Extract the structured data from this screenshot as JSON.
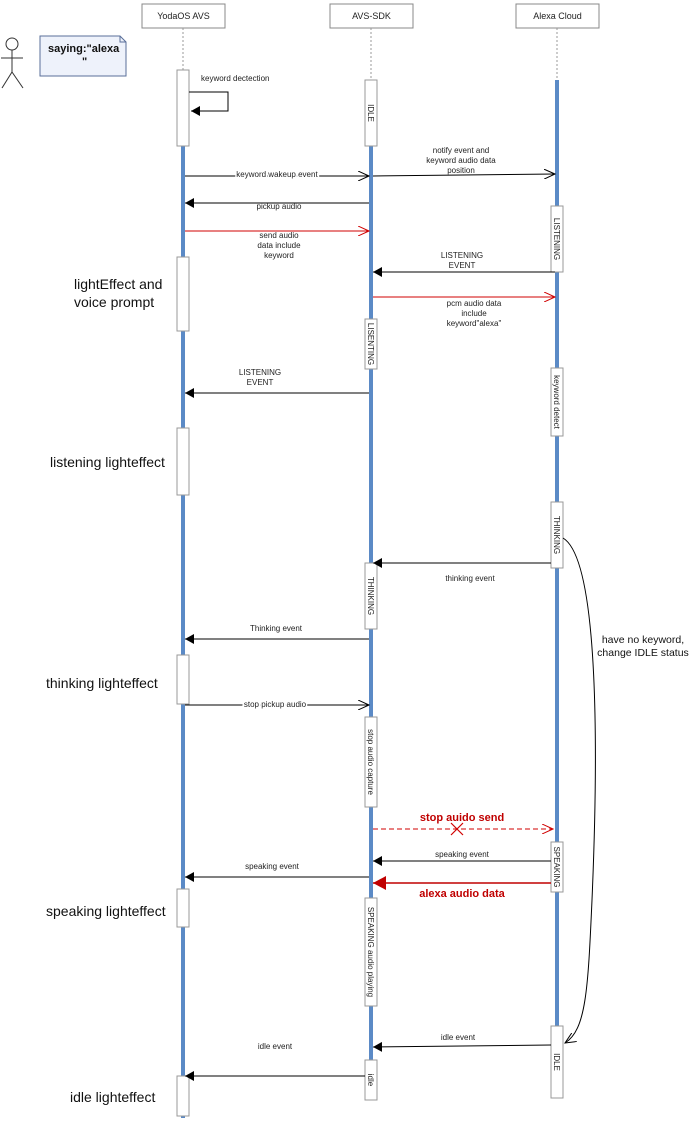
{
  "participants": {
    "yodaos": "YodaOS AVS",
    "avs": "AVS-SDK",
    "cloud": "Alexa Cloud"
  },
  "note": {
    "line1": "saying:\"alexa",
    "line2": "\""
  },
  "messages": {
    "keyword_detection": "keyword dectection",
    "keyword_wakeup": "keyword wakeup event",
    "notify_1": "notify event and",
    "notify_2": "keyword audio data",
    "notify_3": "position",
    "pickup_audio": "pickup audio",
    "send_audio_1": "send  audio",
    "send_audio_2": "data include",
    "send_audio_3": "keyword",
    "listening_event_cloud_1": "LISTENING",
    "listening_event_cloud_2": "EVENT",
    "pcm_1": "pcm audio data",
    "pcm_2": "include",
    "pcm_3": "keyword\"alexa\"",
    "listening_event_avs_1": "LISTENING",
    "listening_event_avs_2": "EVENT",
    "thinking_event_cloud": "thinking event",
    "thinking_event_avs": "Thinking event",
    "stop_pickup": "stop pickup audio",
    "stop_send": "stop auido send",
    "speaking_event_cloud": "speaking event",
    "speaking_event_avs": "speaking event",
    "alexa_audio": "alexa audio data",
    "idle_event_cloud": "idle event",
    "idle_event_avs": "idle event"
  },
  "states": {
    "avs_idle": "IDLE",
    "cloud_listening": "LISTENING",
    "avs_listening": "LISENTING",
    "cloud_keyword_detect": "keyword detect",
    "cloud_thinking": "THINKING",
    "avs_thinking": "THINKING",
    "avs_stop_capture": "stop audio capture",
    "cloud_speaking": "SPEAKING",
    "avs_speaking": "SPEAKING audio playing",
    "cloud_idle": "IDLE",
    "avs_idle2": "idle"
  },
  "left_labels": {
    "light_1": "lightEffect and",
    "light_2": "voice prompt",
    "listening": "listening lighteffect",
    "thinking": "thinking lighteffect",
    "speaking": "speaking lighteffect",
    "idle": "idle lighteffect"
  },
  "side_note": {
    "line1": "have no keyword,",
    "line2": "change IDLE status"
  },
  "colors": {
    "lifeline": "#5b8ac6",
    "arrow": "#000000",
    "red": "#d00000",
    "note_bg": "#eef2fb",
    "note_border": "#5a6f9a"
  }
}
